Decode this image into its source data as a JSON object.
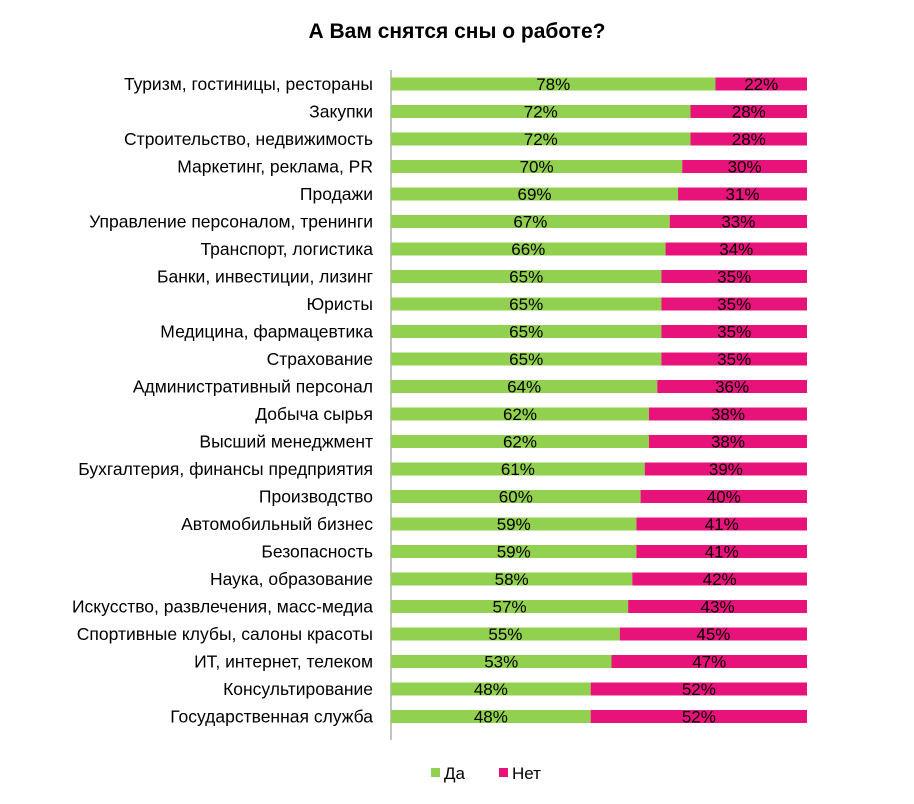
{
  "chart_data": {
    "type": "bar",
    "orientation": "horizontal",
    "stacked": "100%",
    "title": "А Вам снятся сны о работе?",
    "categories": [
      "Туризм, гостиницы, рестораны",
      "Закупки",
      "Строительство, недвижимость",
      "Маркетинг, реклама, PR",
      "Продажи",
      "Управление персоналом, тренинги",
      "Транспорт, логистика",
      "Банки, инвестиции, лизинг",
      "Юристы",
      "Медицина, фармацевтика",
      "Страхование",
      "Административный персонал",
      "Добыча сырья",
      "Высший менеджмент",
      "Бухгалтерия, финансы предприятия",
      "Производство",
      "Автомобильный бизнес",
      "Безопасность",
      "Наука, образование",
      "Искусство, развлечения, масс-медиа",
      "Спортивные клубы, салоны красоты",
      "ИТ, интернет, телеком",
      "Консультирование",
      "Государственная служба"
    ],
    "series": [
      {
        "name": "Да",
        "color": "#92D050",
        "values": [
          78,
          72,
          72,
          70,
          69,
          67,
          66,
          65,
          65,
          65,
          65,
          64,
          62,
          62,
          61,
          60,
          59,
          59,
          58,
          57,
          55,
          53,
          48,
          48
        ]
      },
      {
        "name": "Нет",
        "color": "#E8137A",
        "values": [
          22,
          28,
          28,
          30,
          31,
          33,
          34,
          35,
          35,
          35,
          35,
          36,
          38,
          38,
          39,
          40,
          41,
          41,
          42,
          43,
          45,
          47,
          52,
          52
        ]
      }
    ],
    "value_suffix": "%",
    "xlim": [
      0,
      100
    ],
    "legend": "bottom",
    "grid": false
  }
}
